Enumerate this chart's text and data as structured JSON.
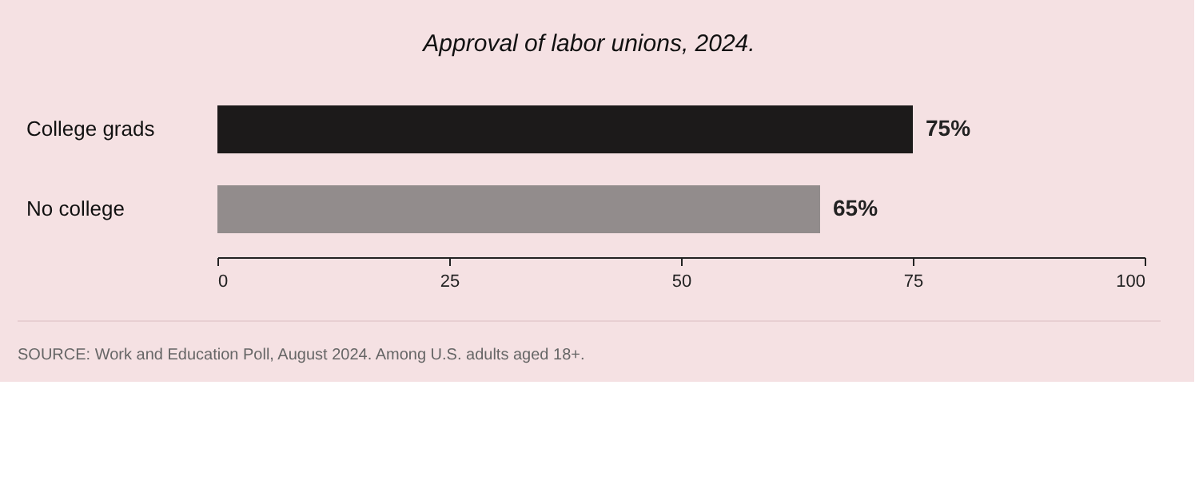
{
  "chart_data": {
    "type": "bar",
    "orientation": "horizontal",
    "title": "Approval of labor unions, 2024.",
    "categories": [
      "College grads",
      "No college"
    ],
    "values": [
      75,
      65
    ],
    "colors": [
      "#1c1a1a",
      "#928c8c"
    ],
    "value_labels": [
      "75%",
      "65%"
    ],
    "xlim": [
      0,
      100
    ],
    "xticks": [
      0,
      25,
      50,
      75,
      100
    ],
    "grid": false,
    "annotations": [
      "SOURCE: Work and Education Poll, August 2024. Among U.S. adults aged 18+."
    ]
  }
}
